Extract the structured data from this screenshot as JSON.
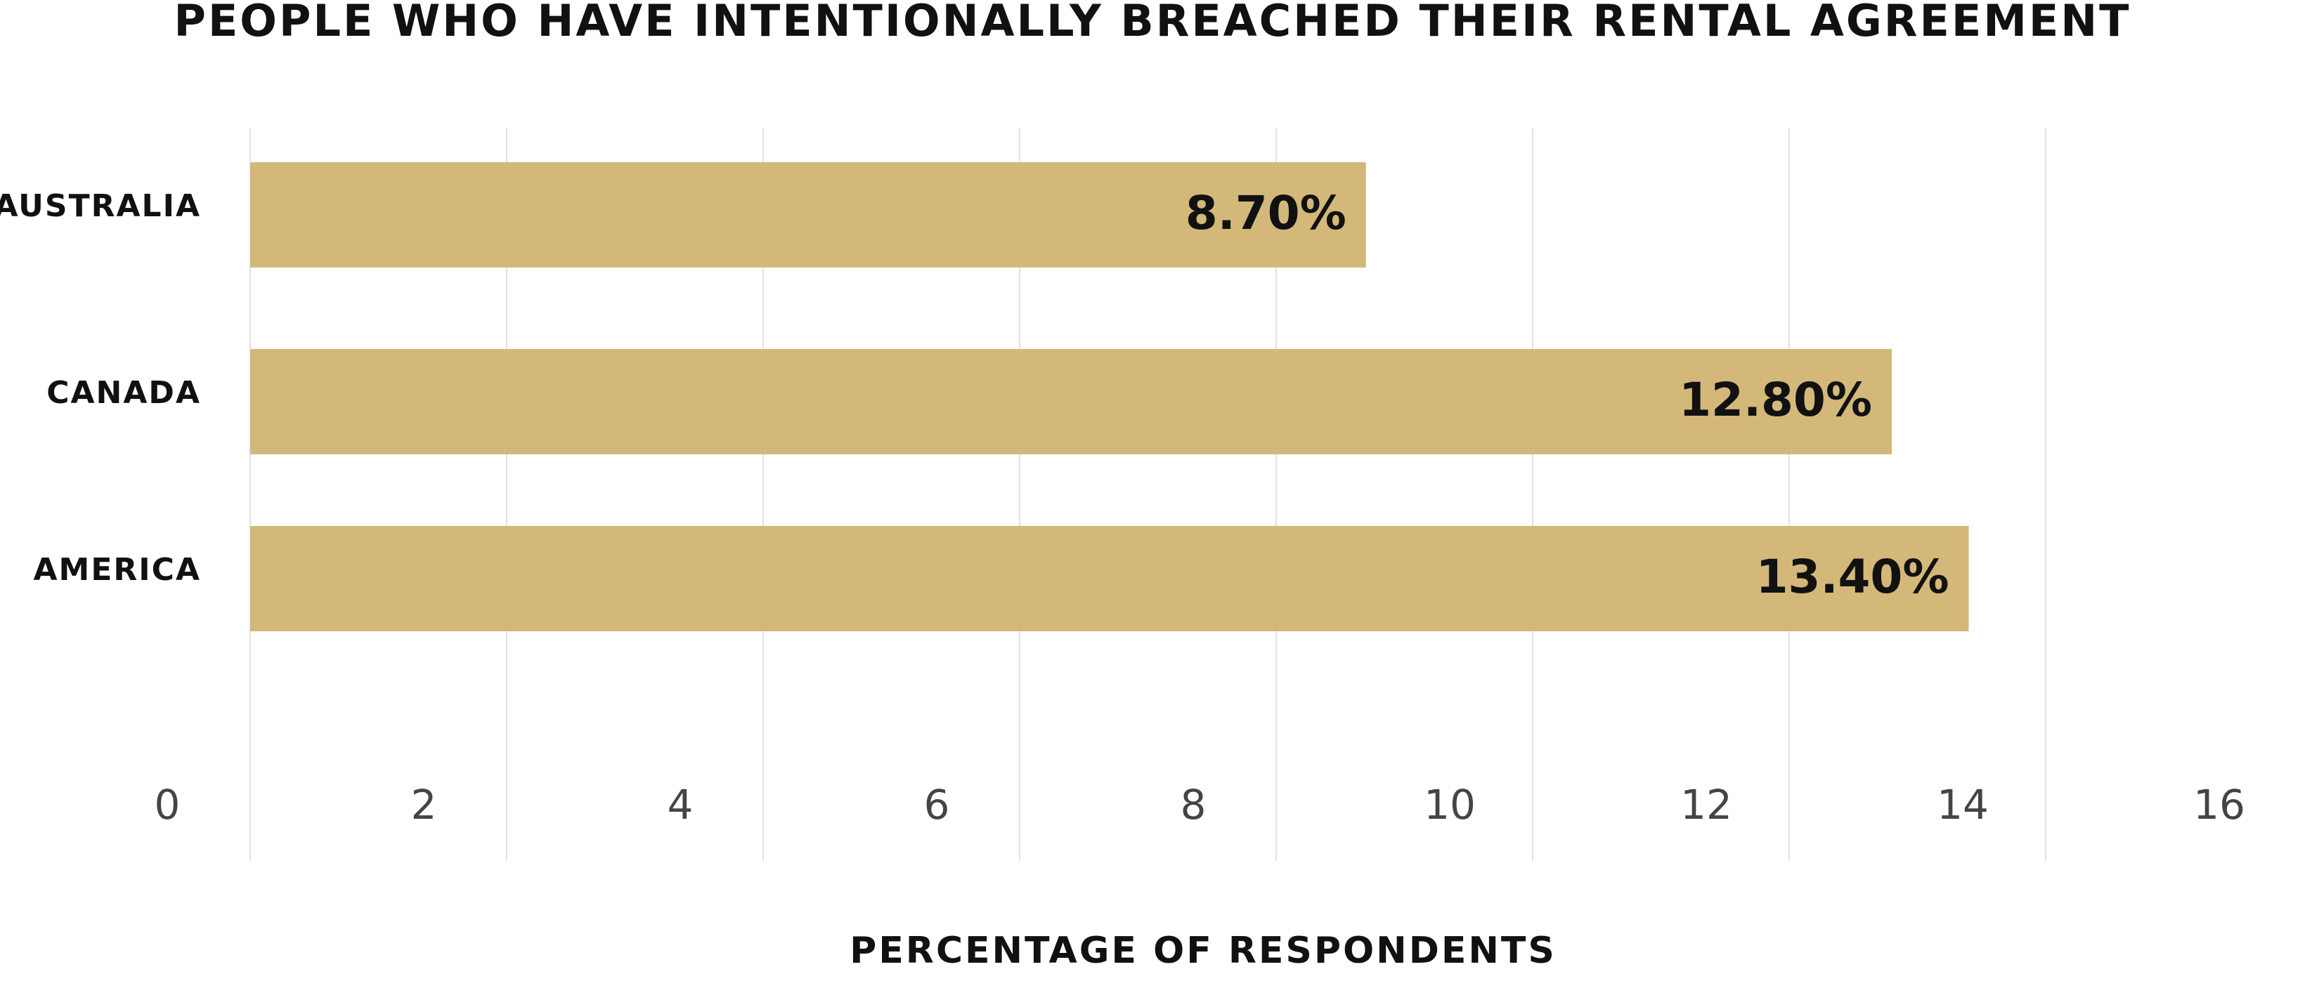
{
  "chart_data": {
    "type": "hbar",
    "title": "PEOPLE WHO HAVE INTENTIONALLY BREACHED THEIR RENTAL AGREEMENT",
    "x_label": "PERCENTAGE OF RESPONDENTS",
    "categories": [
      "AUSTRALIA",
      "CANADA",
      "AMERICA"
    ],
    "values": [
      8.7,
      12.8,
      13.4
    ],
    "value_labels": [
      "8.70%",
      "12.80%",
      "13.40%"
    ],
    "color": "#d4b87a",
    "xlim": [
      0,
      16
    ],
    "xticks": [
      0,
      2,
      4,
      6,
      8,
      10,
      12,
      14,
      16
    ],
    "grid": true
  }
}
